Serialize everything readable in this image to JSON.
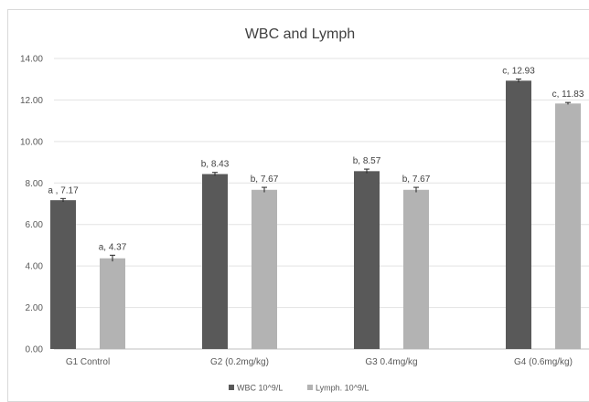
{
  "chart_data": {
    "type": "bar",
    "title": "WBC and Lymph",
    "categories": [
      "G1 Control",
      "G2 (0.2mg/kg)",
      "G3 0.4mg/kg",
      "G4 (0.6mg/kg)"
    ],
    "series": [
      {
        "name": "WBC 10^9/L",
        "color": "#595959",
        "values": [
          7.17,
          8.43,
          8.57,
          12.93
        ],
        "errors": [
          0.08,
          0.08,
          0.1,
          0.08
        ],
        "labels": [
          "a , 7.17",
          "b, 8.43",
          "b, 8.57",
          "c, 12.93"
        ]
      },
      {
        "name": "Lymph. 10^9/L",
        "color": "#b3b3b3",
        "values": [
          4.37,
          7.67,
          7.67,
          11.83
        ],
        "errors": [
          0.15,
          0.12,
          0.12,
          0.05
        ],
        "labels": [
          "a, 4.37",
          "b, 7.67",
          "b, 7.67",
          "c, 11.83"
        ]
      }
    ],
    "ylim": [
      0,
      14
    ],
    "yticks": [
      "0.00",
      "2.00",
      "4.00",
      "6.00",
      "8.00",
      "10.00",
      "12.00",
      "14.00"
    ],
    "grid": true,
    "legend_position": "bottom"
  }
}
